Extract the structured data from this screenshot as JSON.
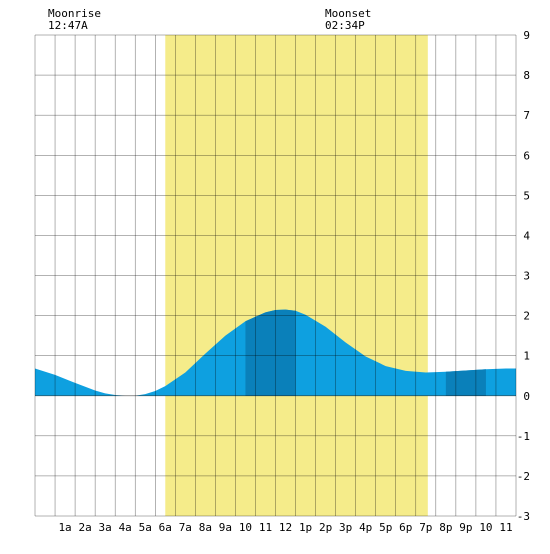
{
  "moonrise": {
    "label": "Moonrise",
    "time": "12:47A"
  },
  "moonset": {
    "label": "Moonset",
    "time": "02:34P"
  },
  "chart_data": {
    "type": "area",
    "title": "",
    "xlabel": "",
    "ylabel": "",
    "x_range_hours": [
      -0.5,
      23.5
    ],
    "ylim": [
      -3,
      9
    ],
    "y_ticks": [
      -3,
      -2,
      -1,
      0,
      1,
      2,
      3,
      4,
      5,
      6,
      7,
      8,
      9
    ],
    "x_tick_labels": [
      "1a",
      "2a",
      "3a",
      "4a",
      "5a",
      "6a",
      "7a",
      "8a",
      "9a",
      "10",
      "11",
      "12",
      "1p",
      "2p",
      "3p",
      "4p",
      "5p",
      "6p",
      "7p",
      "8p",
      "9p",
      "10",
      "11"
    ],
    "grid": true,
    "daylight_hours": [
      6.0,
      19.1
    ],
    "colors": {
      "daylight": "#f5ec8a",
      "tide": "#0ea0e0",
      "tide_dark": "#0a80ba",
      "grid": "#000000"
    },
    "series": [
      {
        "x": [
          -0.5,
          0.5,
          1.5,
          2.5,
          3.0,
          3.5,
          4.0,
          4.5,
          5.0,
          5.5,
          6.0,
          7.0,
          8.0,
          9.0,
          10.0,
          11.0,
          11.5,
          12.0,
          12.5,
          13.0,
          14.0,
          15.0,
          16.0,
          17.0,
          18.0,
          19.0,
          20.0,
          21.0,
          22.0,
          23.0,
          23.5
        ],
        "values": [
          0.68,
          0.52,
          0.32,
          0.13,
          0.06,
          0.02,
          0.0,
          0.0,
          0.04,
          0.12,
          0.24,
          0.58,
          1.05,
          1.5,
          1.86,
          2.08,
          2.14,
          2.15,
          2.12,
          2.02,
          1.72,
          1.33,
          0.98,
          0.74,
          0.62,
          0.58,
          0.6,
          0.63,
          0.66,
          0.68,
          0.68
        ]
      }
    ],
    "shaded_segments_hours": [
      [
        10.0,
        12.5
      ],
      [
        20.0,
        22.0
      ]
    ]
  }
}
